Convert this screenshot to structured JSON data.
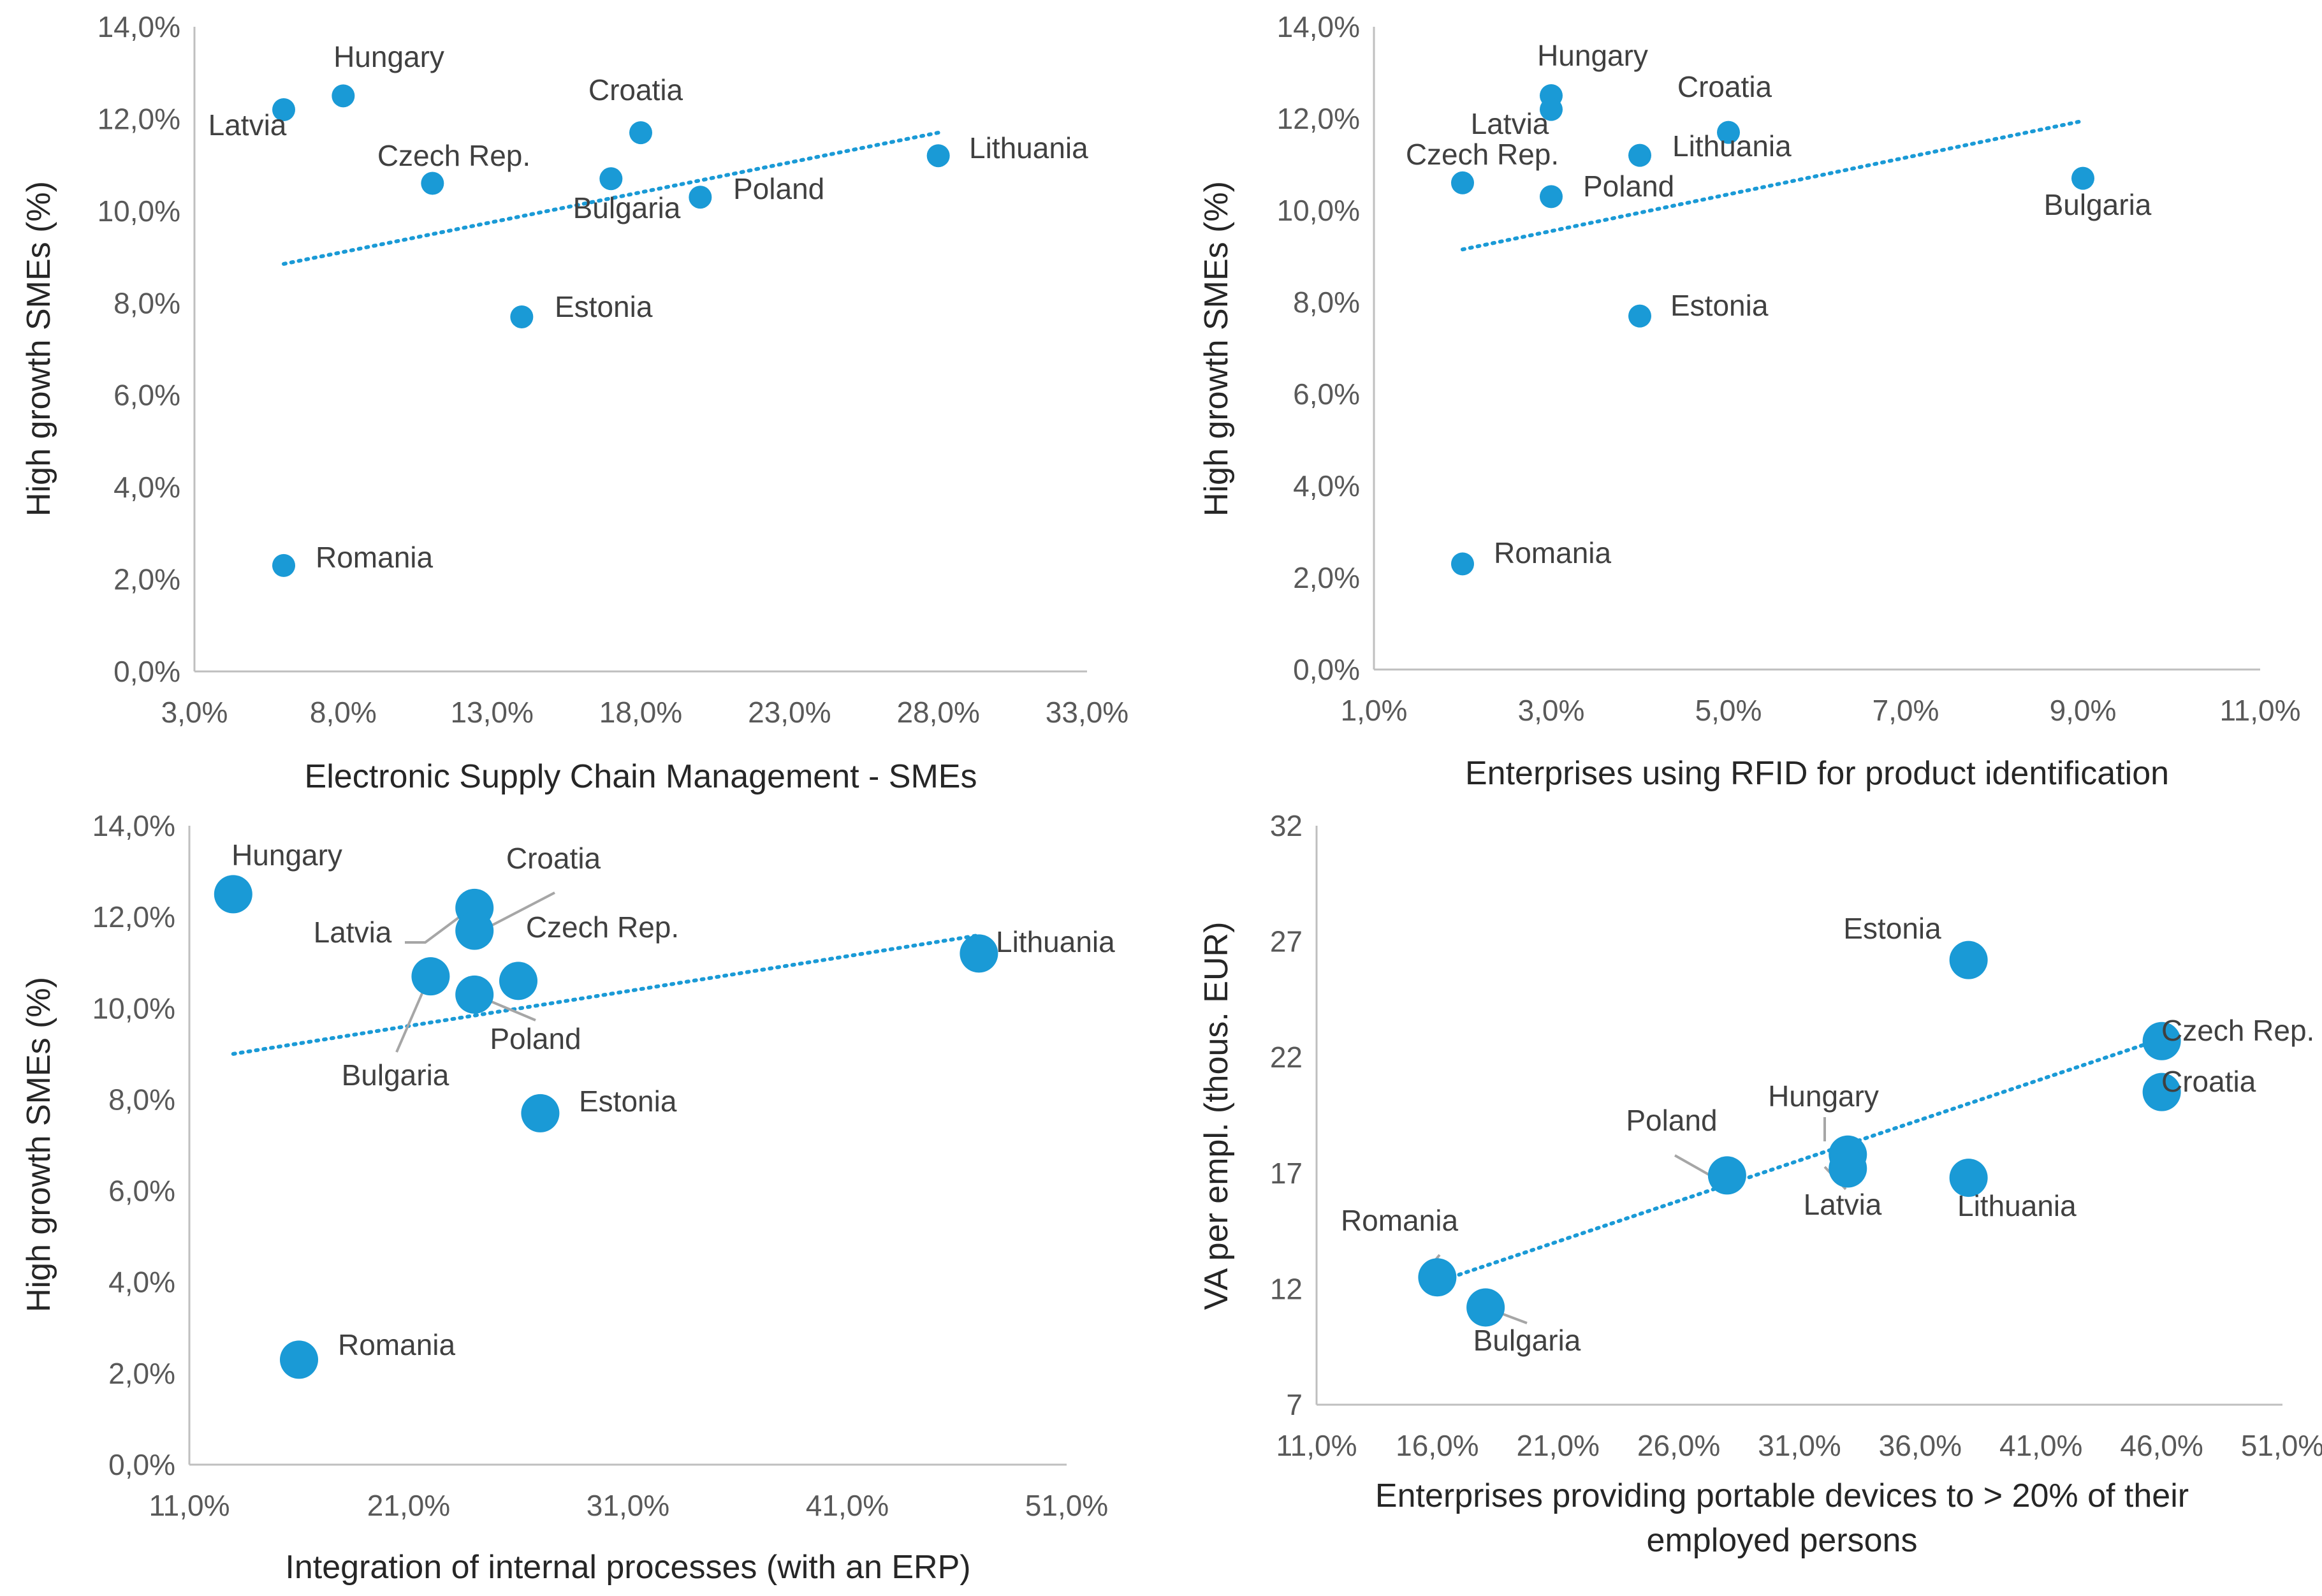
{
  "chart_data": [
    {
      "type": "scatter",
      "xlabel": "Electronic Supply Chain Management - SMEs",
      "ylabel": "High growth SMEs (%)",
      "xlim": [
        3,
        33
      ],
      "ylim": [
        0,
        14
      ],
      "xticks": [
        "3,0%",
        "8,0%",
        "13,0%",
        "18,0%",
        "23,0%",
        "28,0%",
        "33,0%"
      ],
      "yticks": [
        "0,0%",
        "2,0%",
        "4,0%",
        "6,0%",
        "8,0%",
        "10,0%",
        "12,0%",
        "14,0%"
      ],
      "trendline": {
        "x": [
          6,
          28
        ],
        "y": [
          8.85,
          11.7
        ]
      },
      "points": [
        {
          "name": "Latvia",
          "x": 6,
          "y": 12.2
        },
        {
          "name": "Hungary",
          "x": 8,
          "y": 12.5
        },
        {
          "name": "Czech Rep.",
          "x": 11,
          "y": 10.6
        },
        {
          "name": "Croatia",
          "x": 18,
          "y": 11.7
        },
        {
          "name": "Bulgaria",
          "x": 17,
          "y": 10.7
        },
        {
          "name": "Poland",
          "x": 20,
          "y": 10.3
        },
        {
          "name": "Lithuania",
          "x": 28,
          "y": 11.2
        },
        {
          "name": "Estonia",
          "x": 14,
          "y": 7.7
        },
        {
          "name": "Romania",
          "x": 6,
          "y": 2.3
        }
      ]
    },
    {
      "type": "scatter",
      "xlabel": "Enterprises using RFID for product identification",
      "ylabel": "High growth SMEs (%)",
      "xlim": [
        1,
        11
      ],
      "ylim": [
        0,
        14
      ],
      "xticks": [
        "1,0%",
        "3,0%",
        "5,0%",
        "7,0%",
        "9,0%",
        "11,0%"
      ],
      "yticks": [
        "0,0%",
        "2,0%",
        "4,0%",
        "6,0%",
        "8,0%",
        "10,0%",
        "12,0%",
        "14,0%"
      ],
      "trendline": {
        "x": [
          2,
          9
        ],
        "y": [
          9.15,
          11.95
        ]
      },
      "points": [
        {
          "name": "Hungary",
          "x": 3,
          "y": 12.5
        },
        {
          "name": "Latvia",
          "x": 3,
          "y": 12.2
        },
        {
          "name": "Croatia",
          "x": 5,
          "y": 11.7
        },
        {
          "name": "Czech Rep.",
          "x": 2,
          "y": 10.6
        },
        {
          "name": "Lithuania",
          "x": 4,
          "y": 11.2
        },
        {
          "name": "Poland",
          "x": 3,
          "y": 10.3
        },
        {
          "name": "Bulgaria",
          "x": 9,
          "y": 10.7
        },
        {
          "name": "Estonia",
          "x": 4,
          "y": 7.7
        },
        {
          "name": "Romania",
          "x": 2,
          "y": 2.3
        }
      ]
    },
    {
      "type": "scatter",
      "xlabel": "Integration of internal processes (with an ERP)",
      "ylabel": "High growth SMEs (%)",
      "xlim": [
        11,
        51
      ],
      "ylim": [
        0,
        14
      ],
      "xticks": [
        "11,0%",
        "21,0%",
        "31,0%",
        "41,0%",
        "51,0%"
      ],
      "yticks": [
        "0,0%",
        "2,0%",
        "4,0%",
        "6,0%",
        "8,0%",
        "10,0%",
        "12,0%",
        "14,0%"
      ],
      "trendline": {
        "x": [
          13,
          47
        ],
        "y": [
          9.0,
          11.6
        ]
      },
      "points": [
        {
          "name": "Hungary",
          "x": 13,
          "y": 12.5
        },
        {
          "name": "Croatia",
          "x": 24,
          "y": 12.2
        },
        {
          "name": "Latvia",
          "x": 24,
          "y": 11.7
        },
        {
          "name": "Czech Rep.",
          "x": 26,
          "y": 10.6
        },
        {
          "name": "Bulgaria",
          "x": 22,
          "y": 10.7
        },
        {
          "name": "Poland",
          "x": 24,
          "y": 10.3
        },
        {
          "name": "Lithuania",
          "x": 47,
          "y": 11.2
        },
        {
          "name": "Estonia",
          "x": 27,
          "y": 7.7
        },
        {
          "name": "Romania",
          "x": 16,
          "y": 2.3
        }
      ]
    },
    {
      "type": "scatter",
      "xlabel": "Enterprises providing portable devices to > 20% of their employed persons",
      "ylabel": "VA per empl. (thous. EUR)",
      "xlim": [
        11,
        51
      ],
      "ylim": [
        7,
        32
      ],
      "xticks": [
        "11,0%",
        "16,0%",
        "21,0%",
        "26,0%",
        "31,0%",
        "36,0%",
        "41,0%",
        "46,0%",
        "51,0%"
      ],
      "yticks": [
        "7",
        "12",
        "17",
        "22",
        "27",
        "32"
      ],
      "trendline": {
        "x": [
          16,
          46
        ],
        "y": [
          12.3,
          22.8
        ]
      },
      "points": [
        {
          "name": "Estonia",
          "x": 38,
          "y": 26.2
        },
        {
          "name": "Czech Rep.",
          "x": 46,
          "y": 22.7
        },
        {
          "name": "Croatia",
          "x": 46,
          "y": 20.5
        },
        {
          "name": "Hungary",
          "x": 33,
          "y": 17.8
        },
        {
          "name": "Latvia",
          "x": 33,
          "y": 17.2
        },
        {
          "name": "Lithuania",
          "x": 38,
          "y": 16.8
        },
        {
          "name": "Poland",
          "x": 28,
          "y": 16.9
        },
        {
          "name": "Romania",
          "x": 16,
          "y": 12.5
        },
        {
          "name": "Bulgaria",
          "x": 18,
          "y": 11.2
        }
      ]
    }
  ]
}
